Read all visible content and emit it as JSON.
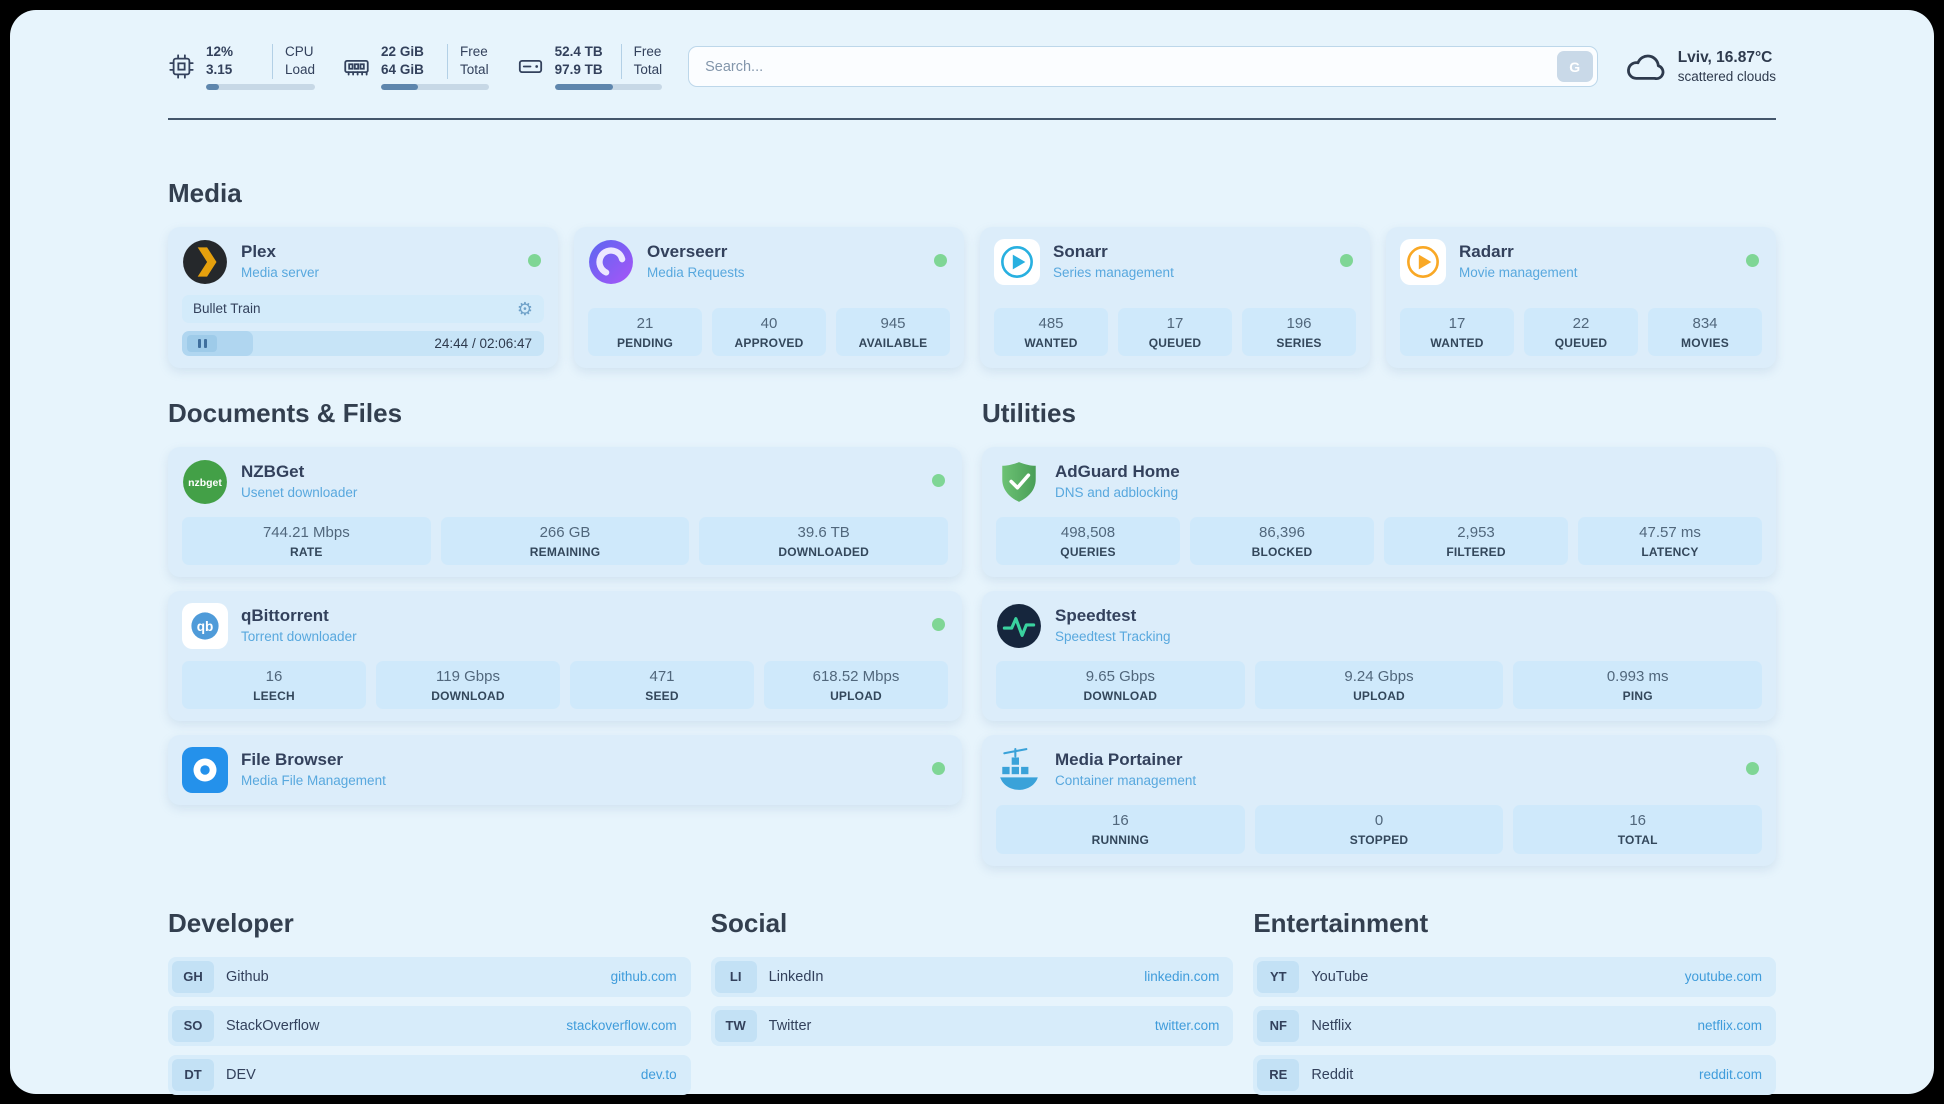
{
  "topbar": {
    "cpu": {
      "value_1": "12%",
      "value_2": "3.15",
      "label_1": "CPU",
      "label_2": "Load",
      "percent": 12
    },
    "ram": {
      "value_1": "22 GiB",
      "value_2": "64 GiB",
      "label_1": "Free",
      "label_2": "Total",
      "percent": 34
    },
    "disk": {
      "value_1": "52.4 TB",
      "value_2": "97.9 TB",
      "label_1": "Free",
      "label_2": "Total",
      "percent": 54
    },
    "search": {
      "placeholder": "Search...",
      "button_label": "G"
    },
    "weather": {
      "location": "Lviv, 16.87°C",
      "condition": "scattered clouds"
    }
  },
  "media": {
    "title": "Media",
    "plex": {
      "name": "Plex",
      "subtitle": "Media server",
      "now_playing_title": "Bullet Train",
      "time": "24:44 / 02:06:47",
      "progress_percent": 19.5
    },
    "overseerr": {
      "name": "Overseerr",
      "subtitle": "Media Requests",
      "stats": [
        {
          "value": "21",
          "label": "PENDING"
        },
        {
          "value": "40",
          "label": "APPROVED"
        },
        {
          "value": "945",
          "label": "AVAILABLE"
        }
      ]
    },
    "sonarr": {
      "name": "Sonarr",
      "subtitle": "Series management",
      "stats": [
        {
          "value": "485",
          "label": "WANTED"
        },
        {
          "value": "17",
          "label": "QUEUED"
        },
        {
          "value": "196",
          "label": "SERIES"
        }
      ]
    },
    "radarr": {
      "name": "Radarr",
      "subtitle": "Movie management",
      "stats": [
        {
          "value": "17",
          "label": "WANTED"
        },
        {
          "value": "22",
          "label": "QUEUED"
        },
        {
          "value": "834",
          "label": "MOVIES"
        }
      ]
    }
  },
  "documents": {
    "title": "Documents & Files",
    "nzbget": {
      "name": "NZBGet",
      "subtitle": "Usenet downloader",
      "stats": [
        {
          "value": "744.21 Mbps",
          "label": "RATE"
        },
        {
          "value": "266 GB",
          "label": "REMAINING"
        },
        {
          "value": "39.6 TB",
          "label": "DOWNLOADED"
        }
      ]
    },
    "qbittorrent": {
      "name": "qBittorrent",
      "subtitle": "Torrent downloader",
      "stats": [
        {
          "value": "16",
          "label": "LEECH"
        },
        {
          "value": "119 Gbps",
          "label": "DOWNLOAD"
        },
        {
          "value": "471",
          "label": "SEED"
        },
        {
          "value": "618.52 Mbps",
          "label": "UPLOAD"
        }
      ]
    },
    "filebrowser": {
      "name": "File Browser",
      "subtitle": "Media File Management"
    }
  },
  "utilities": {
    "title": "Utilities",
    "adguard": {
      "name": "AdGuard Home",
      "subtitle": "DNS and adblocking",
      "stats": [
        {
          "value": "498,508",
          "label": "QUERIES"
        },
        {
          "value": "86,396",
          "label": "BLOCKED"
        },
        {
          "value": "2,953",
          "label": "FILTERED"
        },
        {
          "value": "47.57 ms",
          "label": "LATENCY"
        }
      ]
    },
    "speedtest": {
      "name": "Speedtest",
      "subtitle": "Speedtest Tracking",
      "stats": [
        {
          "value": "9.65 Gbps",
          "label": "DOWNLOAD"
        },
        {
          "value": "9.24 Gbps",
          "label": "UPLOAD"
        },
        {
          "value": "0.993 ms",
          "label": "PING"
        }
      ]
    },
    "portainer": {
      "name": "Media Portainer",
      "subtitle": "Container management",
      "stats": [
        {
          "value": "16",
          "label": "RUNNING"
        },
        {
          "value": "0",
          "label": "STOPPED"
        },
        {
          "value": "16",
          "label": "TOTAL"
        }
      ]
    }
  },
  "bookmarks": [
    {
      "title": "Developer",
      "links": [
        {
          "abbr": "GH",
          "name": "Github",
          "url": "github.com"
        },
        {
          "abbr": "SO",
          "name": "StackOverflow",
          "url": "stackoverflow.com"
        },
        {
          "abbr": "DT",
          "name": "DEV",
          "url": "dev.to"
        }
      ]
    },
    {
      "title": "Social",
      "links": [
        {
          "abbr": "LI",
          "name": "LinkedIn",
          "url": "linkedin.com"
        },
        {
          "abbr": "TW",
          "name": "Twitter",
          "url": "twitter.com"
        }
      ]
    },
    {
      "title": "Entertainment",
      "links": [
        {
          "abbr": "YT",
          "name": "YouTube",
          "url": "youtube.com"
        },
        {
          "abbr": "NF",
          "name": "Netflix",
          "url": "netflix.com"
        },
        {
          "abbr": "RE",
          "name": "Reddit",
          "url": "reddit.com"
        }
      ]
    }
  ],
  "colors": {
    "accent_blue": "#3f9cdb",
    "status_green": "#7fd695",
    "page_bg": "#e7f4fc"
  }
}
